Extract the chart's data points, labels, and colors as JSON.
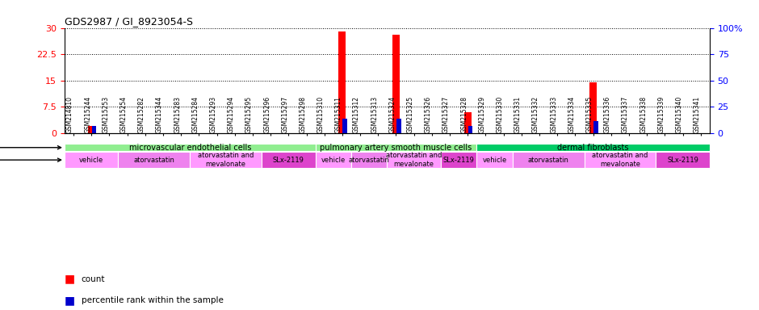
{
  "title": "GDS2987 / GI_8923054-S",
  "samples": [
    "GSM214810",
    "GSM215244",
    "GSM215253",
    "GSM215254",
    "GSM215282",
    "GSM215344",
    "GSM215283",
    "GSM215284",
    "GSM215293",
    "GSM215294",
    "GSM215295",
    "GSM215296",
    "GSM215297",
    "GSM215298",
    "GSM215310",
    "GSM215311",
    "GSM215312",
    "GSM215313",
    "GSM215324",
    "GSM215325",
    "GSM215326",
    "GSM215327",
    "GSM215328",
    "GSM215329",
    "GSM215330",
    "GSM215331",
    "GSM215332",
    "GSM215333",
    "GSM215334",
    "GSM215335",
    "GSM215336",
    "GSM215337",
    "GSM215338",
    "GSM215339",
    "GSM215340",
    "GSM215341"
  ],
  "count_values": [
    0,
    2,
    0,
    0,
    0,
    0,
    0,
    0,
    0,
    0,
    0,
    0,
    0,
    0,
    0,
    29,
    0,
    0,
    28,
    0,
    0,
    0,
    6,
    0,
    0,
    0,
    0,
    0,
    0,
    14.5,
    0,
    0,
    0,
    0,
    0,
    0
  ],
  "percentile_values": [
    0,
    7,
    0,
    0,
    0,
    0,
    0,
    0,
    0,
    0,
    0,
    0,
    0,
    0,
    0,
    13.5,
    0,
    0,
    13.5,
    0,
    0,
    0,
    7,
    0,
    0,
    0,
    0,
    0,
    0,
    11,
    0,
    0,
    0,
    0,
    0,
    0
  ],
  "ylim_left": [
    0,
    30
  ],
  "ylim_right": [
    0,
    100
  ],
  "yticks_left": [
    0,
    7.5,
    15,
    22.5,
    30
  ],
  "ytick_labels_left": [
    "0",
    "7.5",
    "15",
    "22.5",
    "30"
  ],
  "yticks_right": [
    0,
    25,
    50,
    75,
    100
  ],
  "ytick_labels_right": [
    "0",
    "25",
    "50",
    "75",
    "100%"
  ],
  "cell_line_groups": [
    {
      "label": "microvascular endothelial cells",
      "start": 0,
      "end": 14,
      "color": "#90ee90"
    },
    {
      "label": "pulmonary artery smooth muscle cells",
      "start": 14,
      "end": 23,
      "color": "#90EE90"
    },
    {
      "label": "dermal fibroblasts",
      "start": 23,
      "end": 36,
      "color": "#00CC66"
    }
  ],
  "agent_groups": [
    {
      "label": "vehicle",
      "start": 0,
      "end": 3,
      "color": "#FF99FF"
    },
    {
      "label": "atorvastatin",
      "start": 3,
      "end": 7,
      "color": "#EE82EE"
    },
    {
      "label": "atorvastatin and\nmevalonate",
      "start": 7,
      "end": 11,
      "color": "#FF99FF"
    },
    {
      "label": "SLx-2119",
      "start": 11,
      "end": 14,
      "color": "#DD44CC"
    },
    {
      "label": "vehicle",
      "start": 14,
      "end": 16,
      "color": "#FF99FF"
    },
    {
      "label": "atorvastatin",
      "start": 16,
      "end": 18,
      "color": "#EE82EE"
    },
    {
      "label": "atorvastatin and\nmevalonate",
      "start": 18,
      "end": 21,
      "color": "#FF99FF"
    },
    {
      "label": "SLx-2119",
      "start": 21,
      "end": 23,
      "color": "#DD44CC"
    },
    {
      "label": "vehicle",
      "start": 23,
      "end": 25,
      "color": "#FF99FF"
    },
    {
      "label": "atorvastatin",
      "start": 25,
      "end": 29,
      "color": "#EE82EE"
    },
    {
      "label": "atorvastatin and\nmevalonate",
      "start": 29,
      "end": 33,
      "color": "#FF99FF"
    },
    {
      "label": "SLx-2119",
      "start": 33,
      "end": 36,
      "color": "#DD44CC"
    }
  ],
  "bar_color_count": "#FF0000",
  "bar_color_percentile": "#0000CC",
  "background_color": "#FFFFFF"
}
